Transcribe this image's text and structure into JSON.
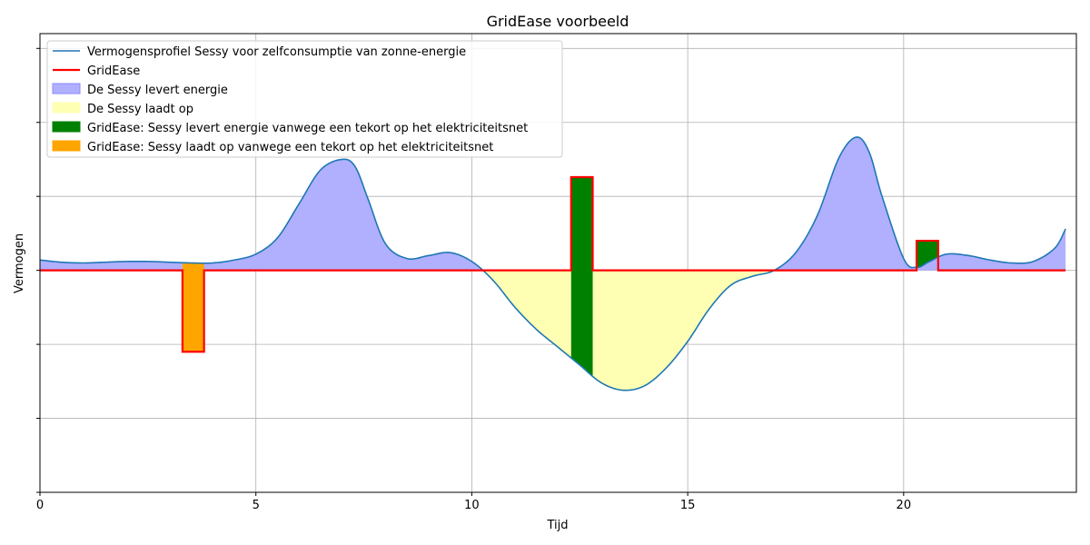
{
  "chart_data": {
    "type": "area",
    "title": "GridEase voorbeeld",
    "xlabel": "Tijd",
    "ylabel": "Vermogen",
    "xlim": [
      0,
      24
    ],
    "ylim": [
      -1.5,
      1.6
    ],
    "xticks": [
      0,
      5,
      10,
      15,
      20
    ],
    "yticks": [
      -1.5,
      -1.0,
      -0.5,
      0,
      0.5,
      1.0,
      1.5
    ],
    "grid": true,
    "legend_position": "top-left",
    "profile": {
      "name": "Vermogensprofiel Sessy voor zelfconsumptie van zonne-energie",
      "color": "#1f77b4",
      "x": [
        0.0,
        0.5,
        1.0,
        1.5,
        2.0,
        2.5,
        3.0,
        3.5,
        4.0,
        4.5,
        5.0,
        5.5,
        6.0,
        6.5,
        7.0,
        7.3,
        7.6,
        8.0,
        8.5,
        9.0,
        9.5,
        10.0,
        10.5,
        11.0,
        11.5,
        12.0,
        12.5,
        13.0,
        13.5,
        14.0,
        14.5,
        15.0,
        15.5,
        16.0,
        16.5,
        17.0,
        17.5,
        18.0,
        18.5,
        18.9,
        19.2,
        19.5,
        20.0,
        20.3,
        20.6,
        21.0,
        21.5,
        22.0,
        22.5,
        23.0,
        23.5,
        23.75
      ],
      "y": [
        0.07,
        0.055,
        0.05,
        0.055,
        0.06,
        0.06,
        0.055,
        0.05,
        0.05,
        0.07,
        0.11,
        0.22,
        0.45,
        0.68,
        0.75,
        0.7,
        0.48,
        0.18,
        0.08,
        0.1,
        0.12,
        0.06,
        -0.07,
        -0.25,
        -0.4,
        -0.52,
        -0.64,
        -0.76,
        -0.81,
        -0.78,
        -0.66,
        -0.48,
        -0.26,
        -0.1,
        -0.04,
        0.0,
        0.12,
        0.37,
        0.76,
        0.9,
        0.8,
        0.5,
        0.08,
        0.02,
        0.06,
        0.11,
        0.1,
        0.07,
        0.05,
        0.06,
        0.15,
        0.28
      ]
    },
    "gridease_line": {
      "name": "GridEase",
      "color": "#ff0000",
      "x": [
        0,
        3.3,
        3.3,
        3.8,
        3.8,
        12.3,
        12.3,
        12.8,
        12.8,
        20.3,
        20.3,
        20.8,
        20.8,
        23.75
      ],
      "y": [
        0,
        0,
        -0.55,
        -0.55,
        0,
        0,
        0.63,
        0.63,
        0,
        0,
        0.2,
        0.2,
        0,
        0
      ]
    },
    "fills": [
      {
        "name": "De Sessy levert energie",
        "color": "#b0b0ff"
      },
      {
        "name": "De Sessy laadt op",
        "color": "#ffffb3"
      },
      {
        "name": "GridEase: Sessy levert energie vanwege een tekort op het elektriciteitsnet",
        "color": "#008000"
      },
      {
        "name": "GridEase: Sessy laadt op vanwege een tekort op het elektriciteitsnet",
        "color": "#ffa500"
      }
    ],
    "events": [
      {
        "type": "charge",
        "x0": 3.3,
        "x1": 3.8,
        "color": "#ffa500"
      },
      {
        "type": "deliver",
        "x0": 12.3,
        "x1": 12.8,
        "color": "#008000"
      },
      {
        "type": "deliver",
        "x0": 20.3,
        "x1": 20.8,
        "color": "#008000"
      }
    ]
  }
}
